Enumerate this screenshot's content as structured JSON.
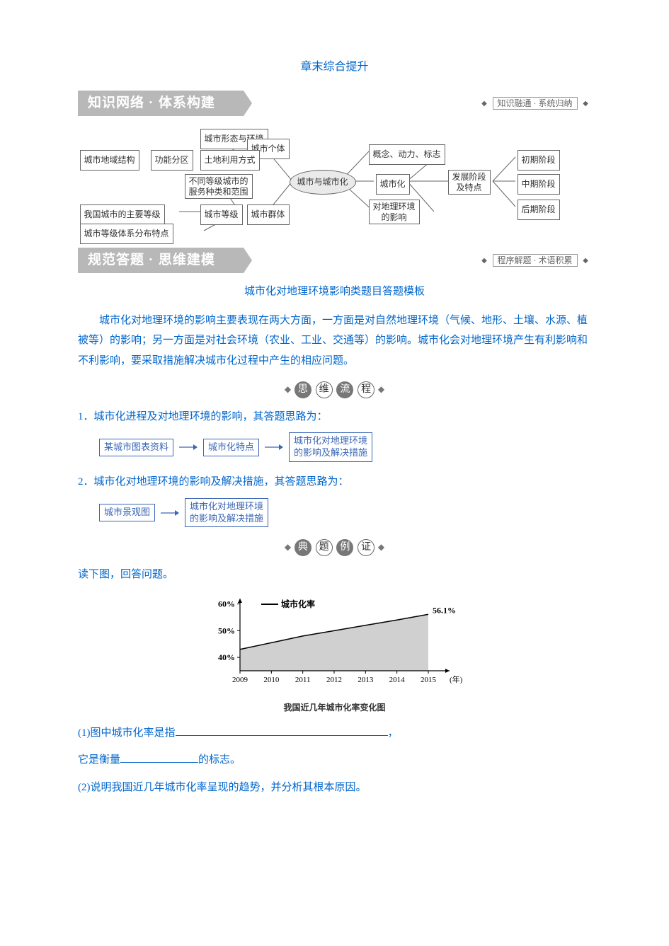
{
  "title": "章末综合提升",
  "sections": {
    "s1": {
      "left": "知识网络 · 体系构建",
      "right": "知识融通 · 系统归纳"
    },
    "s2": {
      "left": "规范答题 · 思维建模",
      "right": "程序解题 · 术语积累"
    }
  },
  "concept_map": {
    "center": "城市与城市化",
    "nodes": {
      "n1": "城市地域结构",
      "n2": "功能分区",
      "n3": "城市形态与环境",
      "n4": "土地利用方式",
      "n5": "不同等级城市的\n服务种类和范围",
      "n6": "我国城市的主要等级",
      "n7": "城市等级体系分布特点",
      "n8": "城市等级",
      "n9": "城市个体",
      "n10": "城市群体",
      "n11": "概念、动力、标志",
      "n12": "城市化",
      "n13": "对地理环境\n的影响",
      "n14": "发展阶段\n及特点",
      "n15": "初期阶段",
      "n16": "中期阶段",
      "n17": "后期阶段"
    },
    "colors": {
      "border": "#666666",
      "oval_bg": "#eaeaea"
    }
  },
  "subtitle": "城市化对地理环境影响类题目答题模板",
  "intro": {
    "p1": "城市化对地理环境的影响主要表现在两大方面，一方面是对自然地理环境（气候、地形、土壤、水源、植被等）的影响；另一方面是对社会环境（农业、工业、交通等）的影响。城市化会对地理环境产生有利影响和不利影响，要采取措施解决城市化过程中产生的相应问题。"
  },
  "circle_headings": {
    "h1": [
      "思",
      "维",
      "流",
      "程"
    ],
    "h2": [
      "典",
      "题",
      "例",
      "证"
    ]
  },
  "steps": {
    "s1_text": "1．城市化进程及对地理环境的影响，其答题思路为：",
    "s2_text": "2．城市化对地理环境的影响及解决措施，其答题思路为："
  },
  "flows": {
    "f1": [
      "某城市图表资料",
      "城市化特点",
      "城市化对地理环境\n的影响及解决措施"
    ],
    "f2": [
      "城市景观图",
      "城市化对地理环境\n的影响及解决措施"
    ]
  },
  "example": {
    "prompt": "读下图，回答问题。",
    "chart": {
      "type": "area-line",
      "legend": "城市化率",
      "x_label_suffix": "(年)",
      "x_ticks": [
        "2009",
        "2010",
        "2011",
        "2012",
        "2013",
        "2014",
        "2015"
      ],
      "y_ticks": [
        "40%",
        "50%",
        "60%"
      ],
      "y_domain": [
        35,
        62
      ],
      "values": [
        43,
        45.5,
        48,
        50,
        52,
        54,
        56.1
      ],
      "end_label": "56.1%",
      "caption": "我国近几年城市化率变化图",
      "colors": {
        "axis": "#000000",
        "line": "#000000",
        "fill": "#d0d0d0",
        "bg": "#ffffff",
        "text": "#000000"
      },
      "font_size": 12
    },
    "q1_a": "(1)图中城市化率是指",
    "q1_b": "，",
    "q1_c": "它是衡量",
    "q1_d": "的标志。",
    "q2": "(2)说明我国近几年城市化率呈现的趋势，并分析其根本原因。"
  }
}
